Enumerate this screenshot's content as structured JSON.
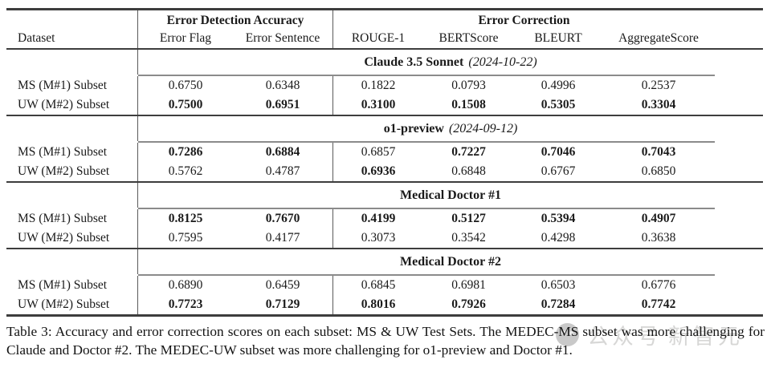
{
  "page": {
    "caption": "Table 3: Accuracy and error correction scores on each subset: MS & UW Test Sets. The MEDEC-MS subset was more challenging for Claude and Doctor #2. The MEDEC-UW subset was more challenging for o1-preview and Doctor #1."
  },
  "watermark": {
    "icon": "publisher-logo-circle",
    "text1": "公众号",
    "text2": "新智元",
    "color": "#b8b7b6"
  },
  "table": {
    "header": {
      "dataset_col": "Dataset",
      "groups": [
        {
          "label": "Error Detection Accuracy",
          "span": 2
        },
        {
          "label": "Error Correction",
          "span": 4
        }
      ],
      "columns": [
        "Error Flag",
        "Error Sentence",
        "ROUGE-1",
        "BERTScore",
        "BLEURT",
        "AggregateScore"
      ]
    },
    "sections": [
      {
        "title": "Claude 3.5 Sonnet",
        "date": "(2024-10-22)",
        "rows": [
          {
            "label": "MS (M#1) Subset",
            "values": [
              "0.6750",
              "0.6348",
              "0.1822",
              "0.0793",
              "0.4996",
              "0.2537"
            ],
            "bold": [
              false,
              false,
              false,
              false,
              false,
              false
            ]
          },
          {
            "label": "UW (M#2) Subset",
            "values": [
              "0.7500",
              "0.6951",
              "0.3100",
              "0.1508",
              "0.5305",
              "0.3304"
            ],
            "bold": [
              true,
              true,
              true,
              true,
              true,
              true
            ]
          }
        ]
      },
      {
        "title": "o1-preview",
        "date": "(2024-09-12)",
        "rows": [
          {
            "label": "MS (M#1) Subset",
            "values": [
              "0.7286",
              "0.6884",
              "0.6857",
              "0.7227",
              "0.7046",
              "0.7043"
            ],
            "bold": [
              true,
              true,
              false,
              true,
              true,
              true
            ]
          },
          {
            "label": "UW (M#2) Subset",
            "values": [
              "0.5762",
              "0.4787",
              "0.6936",
              "0.6848",
              "0.6767",
              "0.6850"
            ],
            "bold": [
              false,
              false,
              true,
              false,
              false,
              false
            ]
          }
        ]
      },
      {
        "title": "Medical Doctor #1",
        "date": "",
        "rows": [
          {
            "label": "MS (M#1) Subset",
            "values": [
              "0.8125",
              "0.7670",
              "0.4199",
              "0.5127",
              "0.5394",
              "0.4907"
            ],
            "bold": [
              true,
              true,
              true,
              true,
              true,
              true
            ]
          },
          {
            "label": "UW (M#2) Subset",
            "values": [
              "0.7595",
              "0.4177",
              "0.3073",
              "0.3542",
              "0.4298",
              "0.3638"
            ],
            "bold": [
              false,
              false,
              false,
              false,
              false,
              false
            ]
          }
        ]
      },
      {
        "title": "Medical Doctor #2",
        "date": "",
        "rows": [
          {
            "label": "MS (M#1) Subset",
            "values": [
              "0.6890",
              "0.6459",
              "0.6845",
              "0.6981",
              "0.6503",
              "0.6776"
            ],
            "bold": [
              false,
              false,
              false,
              false,
              false,
              false
            ]
          },
          {
            "label": "UW (M#2) Subset",
            "values": [
              "0.7723",
              "0.7129",
              "0.8016",
              "0.7926",
              "0.7284",
              "0.7742"
            ],
            "bold": [
              true,
              true,
              true,
              true,
              true,
              true
            ]
          }
        ]
      }
    ]
  }
}
